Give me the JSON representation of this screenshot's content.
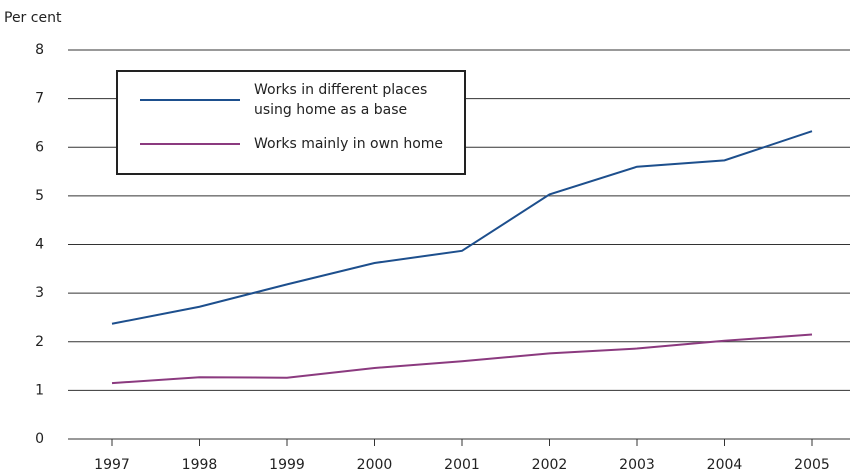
{
  "chart_data": {
    "type": "line",
    "y_label": "Per cent",
    "categories": [
      "1997",
      "1998",
      "1999",
      "2000",
      "2001",
      "2002",
      "2003",
      "2004",
      "2005"
    ],
    "series": [
      {
        "name": "Works in different places using home as a base",
        "color": "#1d4f8d",
        "values": [
          2.37,
          2.72,
          3.18,
          3.62,
          3.87,
          5.03,
          5.6,
          5.73,
          6.33
        ]
      },
      {
        "name": "Works mainly in own home",
        "color": "#8b3a7f",
        "values": [
          1.15,
          1.27,
          1.26,
          1.46,
          1.6,
          1.76,
          1.86,
          2.02,
          2.15
        ]
      }
    ],
    "ylim": [
      0,
      8
    ],
    "yticks": [
      0,
      1,
      2,
      3,
      4,
      5,
      6,
      7,
      8
    ],
    "grid": true
  }
}
